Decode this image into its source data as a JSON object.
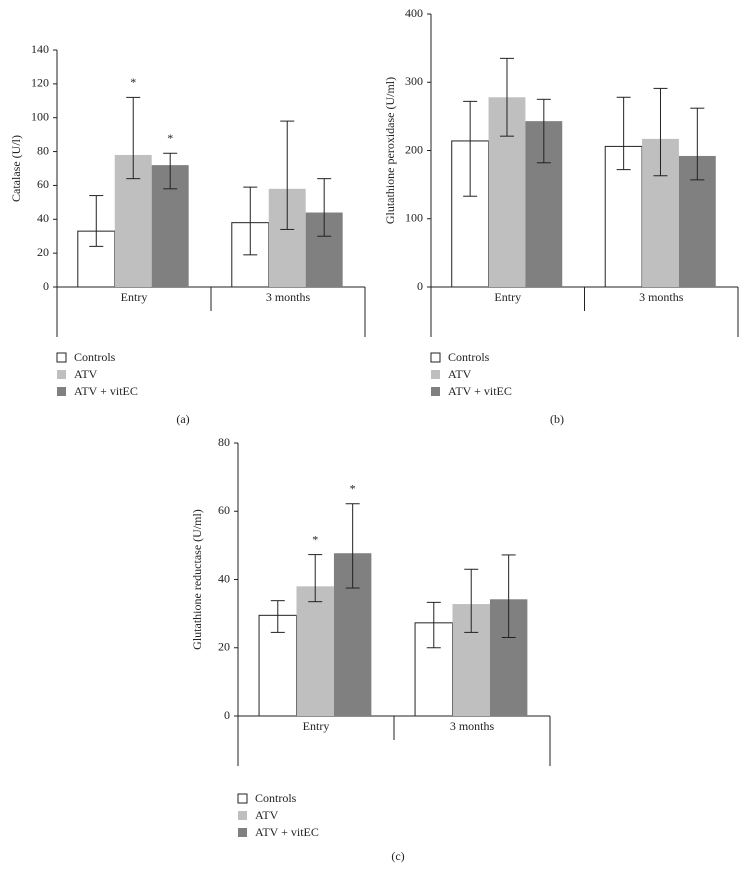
{
  "chart_data": [
    {
      "type": "bar",
      "caption": "(a)",
      "y_label": "Catalase (U/l)",
      "categories": [
        "Entry",
        "3 months"
      ],
      "ylim": [
        0,
        140
      ],
      "yticks": [
        0,
        20,
        40,
        60,
        80,
        100,
        120,
        140
      ],
      "series": [
        {
          "name": "Controls",
          "color": "#ffffff",
          "values": [
            33,
            38
          ],
          "low": [
            24,
            19
          ],
          "high": [
            54,
            59
          ],
          "significance": [
            null,
            null
          ]
        },
        {
          "name": "ATV",
          "color": "#bfbfbf",
          "values": [
            78,
            58
          ],
          "low": [
            64,
            34
          ],
          "high": [
            112,
            98
          ],
          "significance": [
            "*",
            null
          ]
        },
        {
          "name": "ATV + vitEC",
          "color": "#808080",
          "values": [
            72,
            44
          ],
          "low": [
            58,
            30
          ],
          "high": [
            79,
            64
          ],
          "significance": [
            "*",
            null
          ]
        }
      ]
    },
    {
      "type": "bar",
      "caption": "(b)",
      "y_label": "Glutathione peroxidase (U/ml)",
      "categories": [
        "Entry",
        "3 months"
      ],
      "ylim": [
        0,
        400
      ],
      "yticks": [
        0,
        100,
        200,
        300,
        400
      ],
      "series": [
        {
          "name": "Controls",
          "color": "#ffffff",
          "values": [
            214,
            206
          ],
          "low": [
            133,
            172
          ],
          "high": [
            272,
            278
          ],
          "significance": [
            null,
            null
          ]
        },
        {
          "name": "ATV",
          "color": "#bfbfbf",
          "values": [
            278,
            217
          ],
          "low": [
            221,
            163
          ],
          "high": [
            335,
            291
          ],
          "significance": [
            null,
            null
          ]
        },
        {
          "name": "ATV + vitEC",
          "color": "#808080",
          "values": [
            243,
            192
          ],
          "low": [
            182,
            157
          ],
          "high": [
            275,
            262
          ],
          "significance": [
            null,
            null
          ]
        }
      ]
    },
    {
      "type": "bar",
      "caption": "(c)",
      "y_label": "Glutathione reductase (U/ml)",
      "categories": [
        "Entry",
        "3 months"
      ],
      "ylim": [
        0,
        80
      ],
      "yticks": [
        0,
        20,
        40,
        60,
        80
      ],
      "series": [
        {
          "name": "Controls",
          "color": "#ffffff",
          "values": [
            29.5,
            27.3
          ],
          "low": [
            24.5,
            20
          ],
          "high": [
            33.8,
            33.3
          ],
          "significance": [
            null,
            null
          ]
        },
        {
          "name": "ATV",
          "color": "#bfbfbf",
          "values": [
            38,
            32.8
          ],
          "low": [
            33.5,
            24.5
          ],
          "high": [
            47.3,
            43
          ],
          "significance": [
            "*",
            null
          ]
        },
        {
          "name": "ATV + vitEC",
          "color": "#808080",
          "values": [
            47.7,
            34.2
          ],
          "low": [
            37.5,
            23
          ],
          "high": [
            62.2,
            47.2
          ],
          "significance": [
            "*",
            null
          ]
        }
      ]
    }
  ]
}
